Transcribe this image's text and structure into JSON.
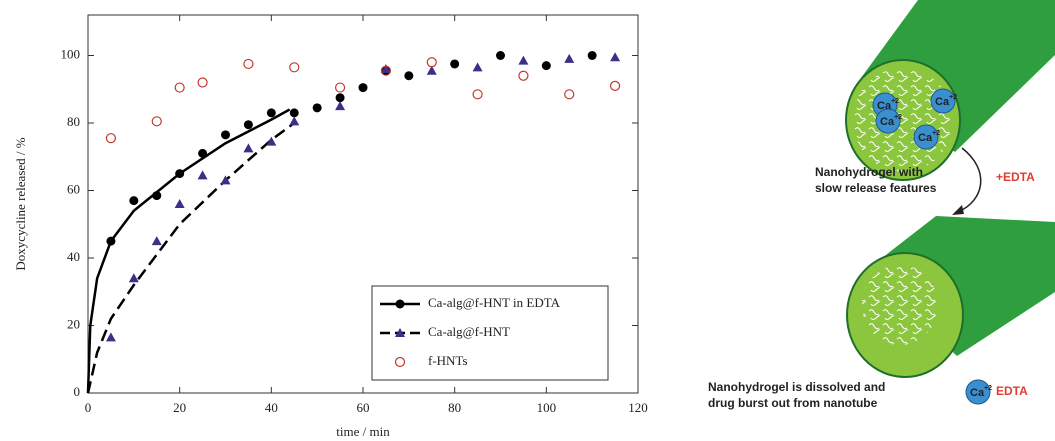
{
  "chart_data": {
    "type": "scatter",
    "x_label": "time / min",
    "y_label": "Doxycycline released / %",
    "xlim": [
      0,
      120
    ],
    "xticks": [
      0,
      20,
      40,
      60,
      80,
      100,
      120
    ],
    "ylim": [
      0,
      112
    ],
    "yticks": [
      0,
      20,
      40,
      60,
      80,
      100
    ],
    "legend": "lower right",
    "series": [
      {
        "name": "Ca-alg@f-HNT in EDTA",
        "color": "#000000",
        "marker": "filled-circle",
        "x": [
          5,
          10,
          15,
          20,
          25,
          30,
          35,
          40,
          45,
          50,
          55,
          60,
          65,
          70,
          80,
          90,
          100,
          110
        ],
        "values": [
          45,
          57,
          58.5,
          65,
          71,
          76.5,
          79.5,
          83,
          83,
          84.5,
          87.5,
          90.5,
          95.5,
          94,
          97.5,
          100,
          97,
          100
        ],
        "fit": {
          "dash": false,
          "x": [
            0,
            0.5,
            2,
            5,
            10,
            20,
            30,
            40,
            44
          ],
          "values": [
            0,
            20,
            34,
            45,
            54,
            65,
            74,
            81,
            84
          ]
        }
      },
      {
        "name": "Ca-alg@f-HNT",
        "color": "#3b2f86",
        "marker": "triangle",
        "x": [
          5,
          10,
          15,
          20,
          25,
          30,
          35,
          40,
          45,
          55,
          65,
          75,
          85,
          95,
          105,
          115
        ],
        "values": [
          16.5,
          34,
          45,
          56,
          64.5,
          63,
          72.5,
          74.5,
          80.5,
          85,
          96,
          95.5,
          96.5,
          98.5,
          99,
          99.5
        ],
        "fit": {
          "dash": true,
          "x": [
            0,
            2,
            5,
            10,
            15,
            20,
            30,
            40,
            45
          ],
          "values": [
            0,
            12,
            22,
            32,
            41,
            50,
            63,
            75,
            80
          ]
        }
      },
      {
        "name": "f-HNTs",
        "color": "#c0392b",
        "marker": "open-circle",
        "x": [
          5,
          15,
          20,
          25,
          35,
          45,
          55,
          65,
          75,
          85,
          95,
          105,
          115
        ],
        "values": [
          75.5,
          80.5,
          90.5,
          92,
          97.5,
          96.5,
          90.5,
          95.5,
          98,
          88.5,
          94,
          88.5,
          91
        ]
      }
    ]
  },
  "diagram": {
    "ions": [
      {
        "base": "Ca",
        "charge": "+2"
      },
      {
        "base": "Ca",
        "charge": "+2"
      },
      {
        "base": "Ca",
        "charge": "+2"
      },
      {
        "base": "Ca",
        "charge": "+2"
      }
    ],
    "top_caption": [
      "Nanohydrogel with",
      "slow release features"
    ],
    "step": "+EDTA",
    "bottom_caption": [
      "Nanohydrogel is dissolved and",
      "drug burst out from nanotube"
    ],
    "legend_ion": {
      "base": "Ca",
      "charge": "+2"
    },
    "legend_label": "EDTA"
  }
}
